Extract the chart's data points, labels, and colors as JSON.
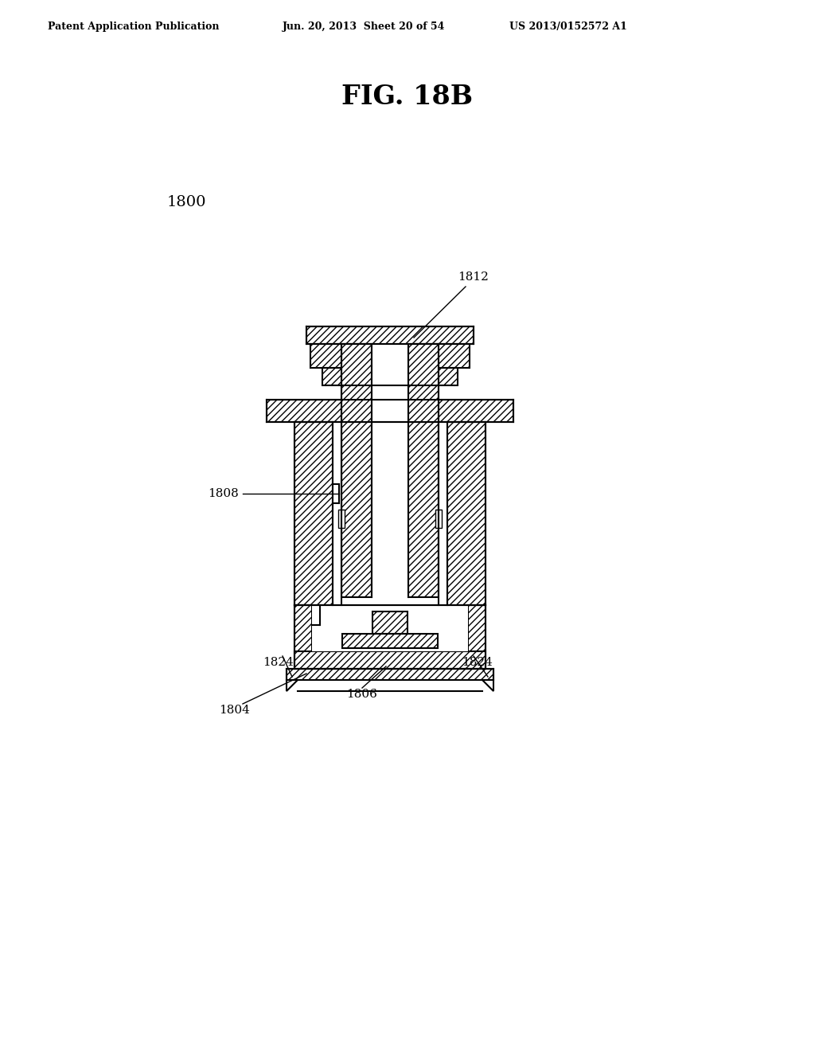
{
  "bg_color": "#ffffff",
  "header_left": "Patent Application Publication",
  "header_mid": "Jun. 20, 2013  Sheet 20 of 54",
  "header_right": "US 2013/0152572 A1",
  "fig_title": "FIG. 18B",
  "label_1800": "1800",
  "label_1812": "1812",
  "label_1808": "1808",
  "label_1824_left": "1824",
  "label_1824_right": "1824",
  "label_1806": "1806",
  "label_1804": "1804",
  "line_color": "#000000"
}
